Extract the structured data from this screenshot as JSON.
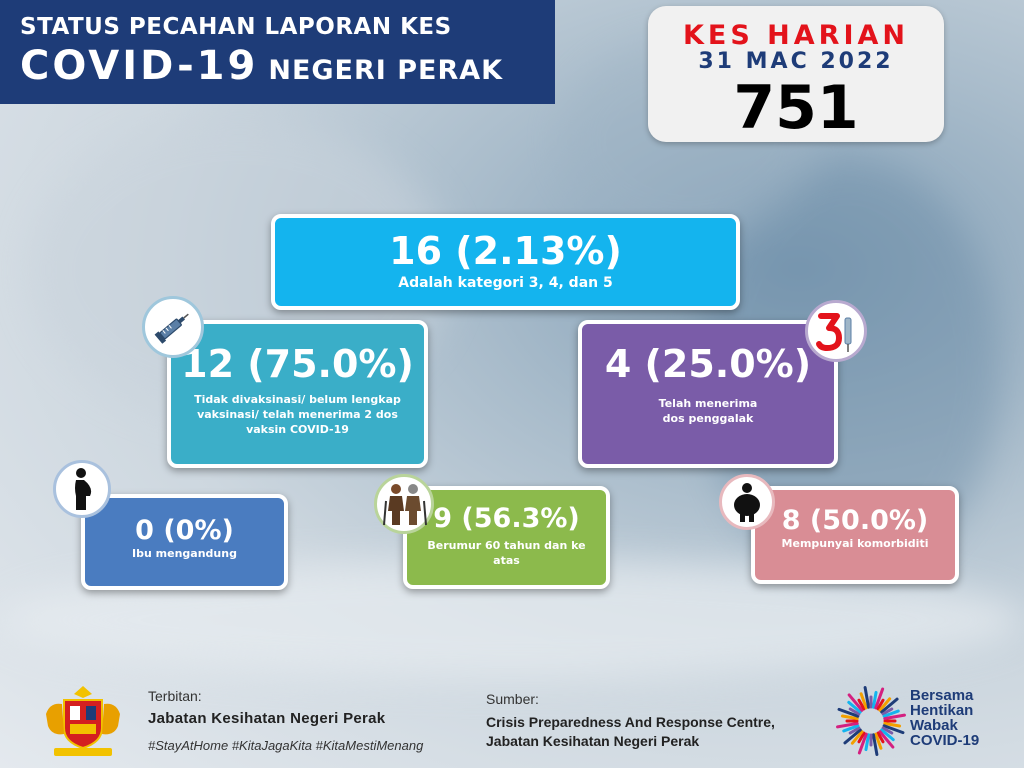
{
  "header": {
    "line1": "STATUS PECAHAN LAPORAN KES",
    "line2_big": "COVID-19",
    "line2_small": "NEGERI PERAK"
  },
  "daily": {
    "title": "KES HARIAN",
    "date": "31 MAC 2022",
    "value": "751"
  },
  "cards": {
    "total": {
      "value": "16 (2.13%)",
      "desc": "Adalah kategori 3, 4, dan 5"
    },
    "unvaccinated": {
      "value": "12 (75.0%)",
      "desc": "Tidak divaksinasi/ belum lengkap vaksinasi/ telah menerima 2 dos vaksin COVID-19"
    },
    "booster": {
      "value": "4 (25.0%)",
      "desc_line1": "Telah menerima",
      "desc_line2": "dos penggalak"
    },
    "pregnant": {
      "value": "0 (0%)",
      "desc": "Ibu mengandung"
    },
    "elderly": {
      "value": "9 (56.3%)",
      "desc": "Berumur 60 tahun dan ke atas"
    },
    "comorbidity": {
      "value": "8 (50.0%)",
      "desc": "Mempunyai komorbiditi"
    }
  },
  "icons": {
    "unvaccinated": "syringe-icon",
    "booster": "booster-dose-icon",
    "pregnant": "pregnant-woman-icon",
    "elderly": "elderly-couple-icon",
    "comorbidity": "obese-person-icon"
  },
  "footer": {
    "issued_label": "Terbitan:",
    "issued_name": "Jabatan Kesihatan Negeri Perak",
    "hashtags": "#StayAtHome #KitaJagaKita #KitaMestiMenang",
    "source_label": "Sumber:",
    "source_line1": "Crisis Preparedness And Response Centre,",
    "source_line2": "Jabatan Kesihatan Negeri Perak",
    "campaign_line1": "Bersama",
    "campaign_line2": "Hentikan",
    "campaign_line3": "Wabak",
    "campaign_line4": "COVID-19"
  },
  "colors": {
    "header_bg": "#1e3c78",
    "daily_title": "#e3131b",
    "total": "#14b4ee",
    "unvaccinated": "#3aaec8",
    "booster": "#7a5ca8",
    "pregnant": "#4a7cc0",
    "elderly": "#8cba4c",
    "comorbidity": "#d98d95"
  }
}
